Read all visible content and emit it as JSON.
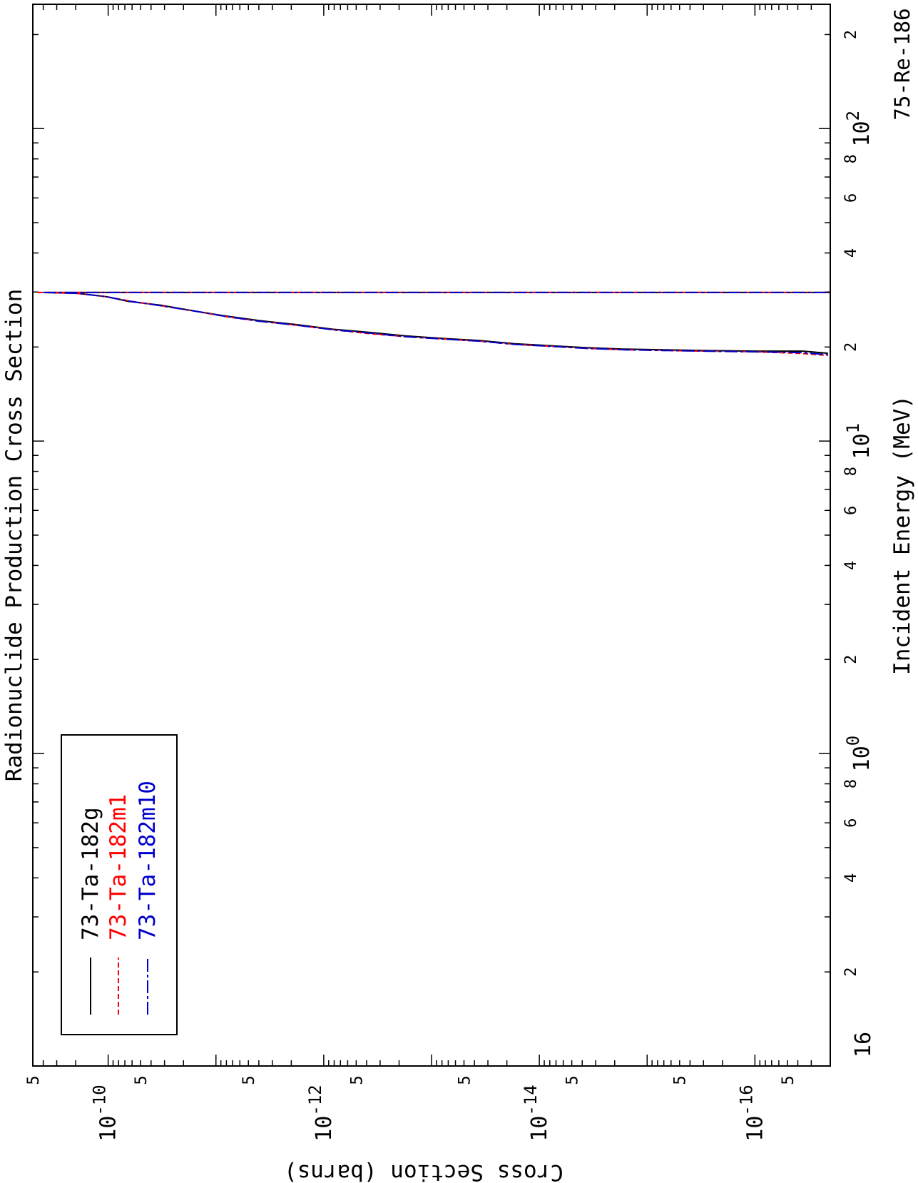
{
  "chart_data": {
    "type": "line",
    "title": "Radionuclide Production Cross Section",
    "xlabel": "Incident Energy (MeV)",
    "ylabel": "Cross Section (barns)",
    "corner_label": "75-Re-186",
    "x_scale": "log",
    "y_scale": "log",
    "xlim": [
      0.1,
      250
    ],
    "ylim": [
      2e-17,
      5e-10
    ],
    "x_major_ticks": [
      {
        "value": 1,
        "base": "10",
        "exp": "0"
      },
      {
        "value": 10,
        "base": "10",
        "exp": "1"
      },
      {
        "value": 100,
        "base": "10",
        "exp": "2"
      }
    ],
    "x_minor_labels": [
      {
        "value": 0.2,
        "label": "2"
      },
      {
        "value": 0.4,
        "label": "4"
      },
      {
        "value": 0.6,
        "label": "6"
      },
      {
        "value": 0.8,
        "label": "8"
      },
      {
        "value": 2,
        "label": "2"
      },
      {
        "value": 4,
        "label": "4"
      },
      {
        "value": 6,
        "label": "6"
      },
      {
        "value": 8,
        "label": "8"
      },
      {
        "value": 20,
        "label": "2"
      },
      {
        "value": 40,
        "label": "4"
      },
      {
        "value": 60,
        "label": "6"
      },
      {
        "value": 80,
        "label": "8"
      },
      {
        "value": 200,
        "label": "2"
      }
    ],
    "x_edge_label": "16",
    "y_major_ticks": [
      {
        "value": 1e-10,
        "base": "10",
        "exp": "-10"
      },
      {
        "value": 1e-12,
        "base": "10",
        "exp": "-12"
      },
      {
        "value": 1e-14,
        "base": "10",
        "exp": "-14"
      },
      {
        "value": 1e-16,
        "base": "10",
        "exp": "-16"
      }
    ],
    "y_minor_labels": [
      {
        "value": 5e-10,
        "label": "5"
      },
      {
        "value": 5e-11,
        "label": "5"
      },
      {
        "value": 5e-12,
        "label": "5"
      },
      {
        "value": 5e-13,
        "label": "5"
      },
      {
        "value": 5e-14,
        "label": "5"
      },
      {
        "value": 5e-15,
        "label": "5"
      },
      {
        "value": 5e-16,
        "label": "5"
      },
      {
        "value": 5e-17,
        "label": "5"
      }
    ],
    "legend_position": "bottom-left",
    "series": [
      {
        "name": "73-Ta-182g",
        "color": "#000000",
        "dash": "solid",
        "points": [
          [
            29.9,
            3.7e-10
          ],
          [
            29.7,
            1.9e-10
          ],
          [
            29.0,
            1.05e-10
          ],
          [
            28.0,
            6.5e-11
          ],
          [
            27.2,
            3.2e-11
          ],
          [
            26.0,
            1.5e-11
          ],
          [
            25.2,
            8.6e-12
          ],
          [
            24.3,
            4e-12
          ],
          [
            23.6,
            1.8e-12
          ],
          [
            22.8,
            8.3e-13
          ],
          [
            22.3,
            3.9e-13
          ],
          [
            21.7,
            1.75e-13
          ],
          [
            21.3,
            7.8e-14
          ],
          [
            21.0,
            3.7e-14
          ],
          [
            20.5,
            1.7e-14
          ],
          [
            20.2,
            8e-15
          ],
          [
            19.9,
            3.7e-15
          ],
          [
            19.7,
            1.7e-15
          ],
          [
            19.6,
            7e-16
          ],
          [
            19.5,
            3e-16
          ],
          [
            19.4,
            1e-16
          ],
          [
            19.4,
            3.6e-17
          ],
          [
            19.1,
            2.1e-17
          ]
        ]
      },
      {
        "name": "73-Ta-182m1",
        "color": "#ff0000",
        "dash": "dashed",
        "points": [
          [
            29.9,
            4.5e-10
          ],
          [
            29.7,
            2e-10
          ],
          [
            29.0,
            1.05e-10
          ],
          [
            28.0,
            6e-11
          ],
          [
            27.1,
            3.2e-11
          ],
          [
            26.0,
            1.5e-11
          ],
          [
            25.0,
            8e-12
          ],
          [
            24.2,
            4e-12
          ],
          [
            23.5,
            1.8e-12
          ],
          [
            22.7,
            8e-13
          ],
          [
            22.1,
            3.9e-13
          ],
          [
            21.6,
            1.8e-13
          ],
          [
            21.2,
            7.5e-14
          ],
          [
            20.9,
            3.7e-14
          ],
          [
            20.4,
            1.7e-14
          ],
          [
            20.1,
            7.8e-15
          ],
          [
            19.8,
            3.6e-15
          ],
          [
            19.6,
            1.6e-15
          ],
          [
            19.5,
            6.7e-16
          ],
          [
            19.4,
            2.9e-16
          ],
          [
            19.3,
            1e-16
          ],
          [
            19.1,
            4e-17
          ],
          [
            18.8,
            2.1e-17
          ]
        ]
      },
      {
        "name": "73-Ta-182m10",
        "color": "#0000cc",
        "dash": "dashdot",
        "points": [
          [
            29.9,
            4e-10
          ],
          [
            29.7,
            1.95e-10
          ],
          [
            29.0,
            1.05e-10
          ],
          [
            28.0,
            6.2e-11
          ],
          [
            27.1,
            3.2e-11
          ],
          [
            26.0,
            1.5e-11
          ],
          [
            25.1,
            8.3e-12
          ],
          [
            24.2,
            4e-12
          ],
          [
            23.5,
            1.8e-12
          ],
          [
            22.7,
            8.1e-13
          ],
          [
            22.2,
            3.9e-13
          ],
          [
            21.6,
            1.8e-13
          ],
          [
            21.2,
            7.6e-14
          ],
          [
            20.9,
            3.7e-14
          ],
          [
            20.4,
            1.7e-14
          ],
          [
            20.1,
            7.9e-15
          ],
          [
            19.8,
            3.6e-15
          ],
          [
            19.6,
            1.6e-15
          ],
          [
            19.5,
            6.8e-16
          ],
          [
            19.4,
            2.9e-16
          ],
          [
            19.3,
            1e-16
          ],
          [
            19.2,
            3.8e-17
          ],
          [
            18.9,
            2.1e-17
          ]
        ]
      }
    ]
  }
}
